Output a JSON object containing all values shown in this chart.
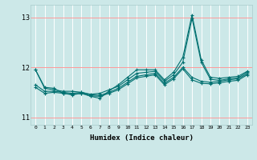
{
  "xlabel": "Humidex (Indice chaleur)",
  "background_color": "#cce8e8",
  "grid_color_x": "#ffffff",
  "grid_color_y": "#ff9999",
  "line_color": "#007070",
  "xlim": [
    -0.5,
    23.5
  ],
  "ylim": [
    10.85,
    13.25
  ],
  "yticks": [
    11,
    12,
    13
  ],
  "xticks": [
    0,
    1,
    2,
    3,
    4,
    5,
    6,
    7,
    8,
    9,
    10,
    11,
    12,
    13,
    14,
    15,
    16,
    17,
    18,
    19,
    20,
    21,
    22,
    23
  ],
  "series": [
    [
      11.95,
      11.6,
      11.58,
      11.48,
      11.45,
      11.48,
      11.42,
      11.38,
      11.53,
      11.65,
      11.8,
      11.95,
      11.95,
      11.95,
      11.75,
      11.9,
      12.2,
      13.05,
      12.15,
      11.8,
      11.78,
      11.8,
      11.82,
      11.92
    ],
    [
      11.95,
      11.58,
      11.55,
      11.52,
      11.52,
      11.5,
      11.46,
      11.48,
      11.55,
      11.62,
      11.75,
      11.88,
      11.9,
      11.92,
      11.72,
      11.85,
      12.1,
      12.98,
      12.1,
      11.76,
      11.74,
      11.77,
      11.79,
      11.9
    ],
    [
      11.65,
      11.52,
      11.52,
      11.5,
      11.48,
      11.5,
      11.45,
      11.44,
      11.5,
      11.58,
      11.7,
      11.82,
      11.85,
      11.88,
      11.68,
      11.8,
      12.0,
      11.8,
      11.72,
      11.7,
      11.72,
      11.75,
      11.77,
      11.87
    ],
    [
      11.6,
      11.48,
      11.5,
      11.48,
      11.46,
      11.48,
      11.43,
      11.42,
      11.48,
      11.55,
      11.67,
      11.79,
      11.82,
      11.85,
      11.65,
      11.77,
      11.97,
      11.75,
      11.68,
      11.67,
      11.69,
      11.72,
      11.74,
      11.85
    ]
  ]
}
